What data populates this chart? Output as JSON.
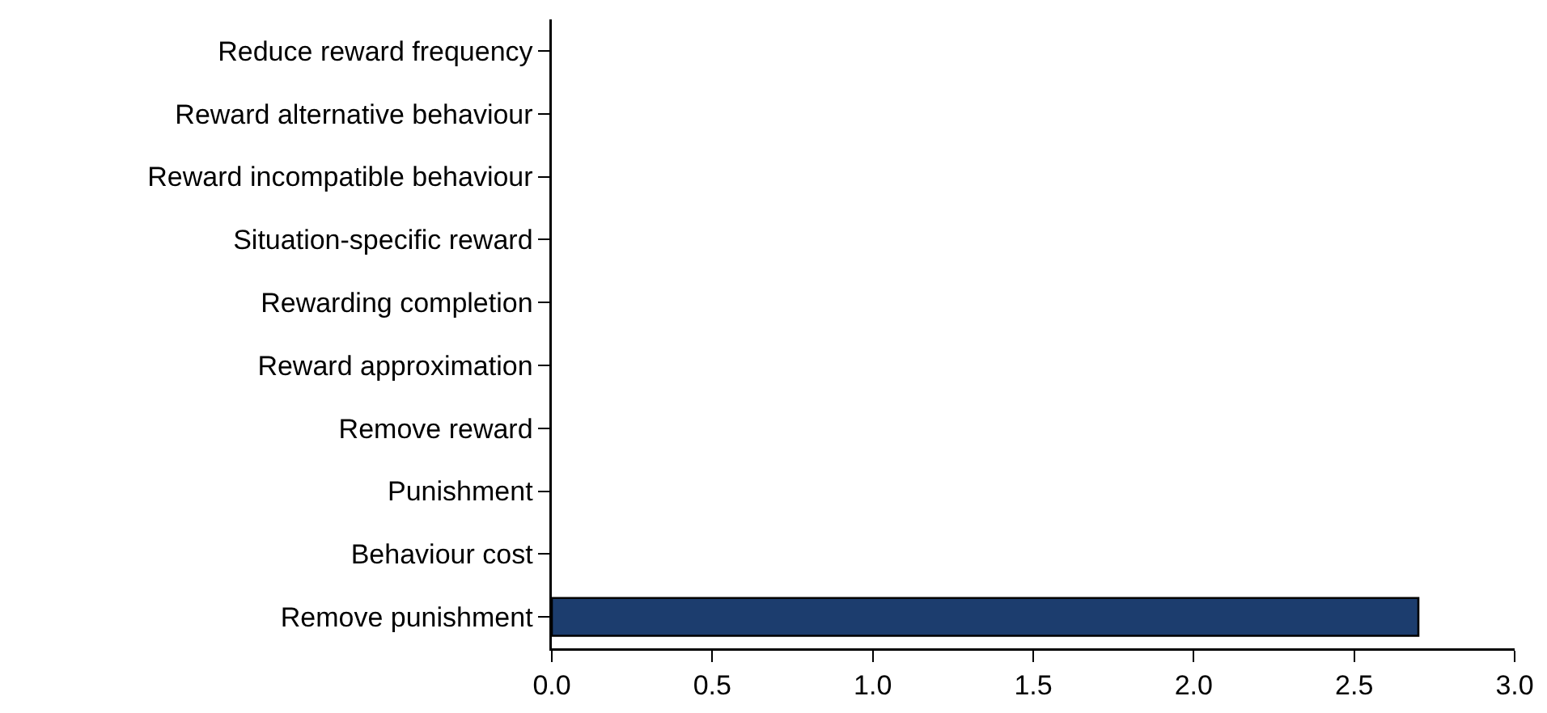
{
  "chart_data": {
    "type": "bar",
    "orientation": "horizontal",
    "categories": [
      "Reduce reward frequency",
      "Reward alternative behaviour",
      "Reward incompatible behaviour",
      "Situation-specific reward",
      "Rewarding completion",
      "Reward approximation",
      "Remove reward",
      "Punishment",
      "Behaviour cost",
      "Remove punishment"
    ],
    "values": [
      0,
      0,
      0,
      0,
      0,
      0,
      0,
      0,
      0,
      2.7
    ],
    "color": "#1c3d6e",
    "xlim": [
      0,
      3
    ],
    "xticks": [
      {
        "value": 0,
        "label": "0.0"
      },
      {
        "value": 0.5,
        "label": "0.5"
      },
      {
        "value": 1,
        "label": "1.0"
      },
      {
        "value": 1.5,
        "label": "1.5"
      },
      {
        "value": 2,
        "label": "2.0"
      },
      {
        "value": 2.5,
        "label": "2.5"
      },
      {
        "value": 3,
        "label": "3.0"
      }
    ],
    "grid": false
  }
}
